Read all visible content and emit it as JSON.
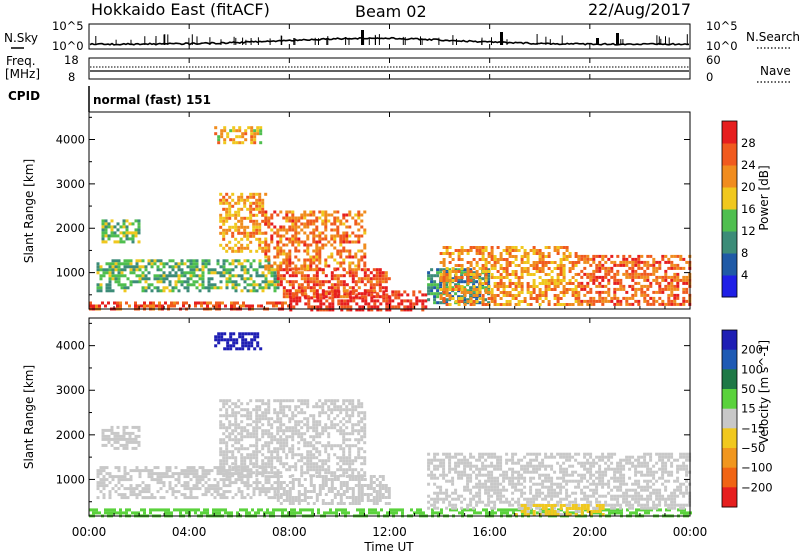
{
  "header": {
    "station": "Hokkaido East (fitACF)",
    "beam": "Beam 02",
    "date": "22/Aug/2017"
  },
  "top_panels": {
    "nsky_label": "N.Sky",
    "nsky_ticks": [
      "10^5",
      "10^0"
    ],
    "nsearch_label": "N.Search",
    "nsearch_ticks": [
      "10^5",
      "10^0"
    ],
    "freq_label": "Freq.",
    "freq_unit": "[MHz]",
    "freq_ticks": [
      "18",
      "8"
    ],
    "nave_label": "Nave",
    "nave_ticks": [
      "60",
      "0"
    ],
    "cpid_label": "CPID",
    "cpid_text": "normal (fast) 151"
  },
  "colors": {
    "power": [
      "#1f1fe6",
      "#1f5aa6",
      "#3c8c78",
      "#4fbf4f",
      "#f0c81e",
      "#f08c1e",
      "#f05a1e",
      "#e61e1e"
    ],
    "velocity": [
      "#1e1eb4",
      "#1e5ab4",
      "#1e7846",
      "#5ad23c",
      "#c8c8c8",
      "#f0c81e",
      "#f0961e",
      "#f06414",
      "#e61e1e"
    ]
  },
  "chart_data": [
    {
      "type": "heatmap",
      "title": "",
      "xlabel": "Time UT",
      "ylabel": "Slant Range [km]",
      "x_range": [
        "00:00",
        "24:00"
      ],
      "x_ticks": [
        "00:00",
        "04:00",
        "08:00",
        "12:00",
        "16:00",
        "20:00",
        "00:00"
      ],
      "ylim": [
        180,
        4620
      ],
      "y_ticks": [
        1000,
        2000,
        3000,
        4000
      ],
      "colorbar": {
        "label": "Power [dB]",
        "ticks": [
          "4",
          "8",
          "12",
          "16",
          "20",
          "24",
          "28"
        ],
        "range": [
          0,
          32
        ]
      },
      "regions": [
        {
          "t0": 0.0,
          "t1": 8.0,
          "r0": 190,
          "r1": 350,
          "value": 26
        },
        {
          "t0": 8.0,
          "t1": 13.5,
          "r0": 190,
          "r1": 600,
          "value": 29
        },
        {
          "t0": 0.3,
          "t1": 7.5,
          "r0": 600,
          "r1": 1300,
          "value": 13
        },
        {
          "t0": 7.5,
          "t1": 12.0,
          "r0": 450,
          "r1": 1100,
          "value": 27
        },
        {
          "t0": 13.5,
          "t1": 16.0,
          "r0": 300,
          "r1": 1100,
          "value": 10
        },
        {
          "t0": 14.0,
          "t1": 19.5,
          "r0": 300,
          "r1": 1600,
          "value": 22
        },
        {
          "t0": 19.5,
          "t1": 24.0,
          "r0": 300,
          "r1": 1400,
          "value": 25
        },
        {
          "t0": 5.2,
          "t1": 7.0,
          "r0": 1500,
          "r1": 2800,
          "value": 21
        },
        {
          "t0": 7.0,
          "t1": 11.0,
          "r0": 1100,
          "r1": 2400,
          "value": 24
        },
        {
          "t0": 0.5,
          "t1": 2.0,
          "r0": 1700,
          "r1": 2200,
          "value": 14
        },
        {
          "t0": 5.0,
          "t1": 6.8,
          "r0": 3900,
          "r1": 4300,
          "value": 20
        }
      ]
    },
    {
      "type": "heatmap",
      "title": "",
      "xlabel": "Time UT",
      "ylabel": "Slant Range [km]",
      "x_range": [
        "00:00",
        "24:00"
      ],
      "x_ticks": [
        "00:00",
        "04:00",
        "08:00",
        "12:00",
        "16:00",
        "20:00",
        "00:00"
      ],
      "ylim": [
        180,
        4620
      ],
      "y_ticks": [
        1000,
        2000,
        3000,
        4000
      ],
      "colorbar": {
        "label": "Velocity [m s^-1]",
        "ticks": [
          "200",
          "100",
          "50",
          "15",
          "−15",
          "−50",
          "−100",
          "−200"
        ],
        "range": [
          -250,
          250
        ]
      },
      "regions": [
        {
          "t0": 0.0,
          "t1": 24.0,
          "r0": 190,
          "r1": 350,
          "value": 60
        },
        {
          "t0": 0.3,
          "t1": 7.5,
          "r0": 600,
          "r1": 1300,
          "value": 0
        },
        {
          "t0": 7.5,
          "t1": 12.0,
          "r0": 450,
          "r1": 1100,
          "value": 0
        },
        {
          "t0": 13.5,
          "t1": 24.0,
          "r0": 350,
          "r1": 1600,
          "value": 0
        },
        {
          "t0": 17.0,
          "t1": 20.5,
          "r0": 190,
          "r1": 450,
          "value": -40
        },
        {
          "t0": 5.2,
          "t1": 11.0,
          "r0": 1100,
          "r1": 2800,
          "value": 0
        },
        {
          "t0": 0.5,
          "t1": 2.0,
          "r0": 1700,
          "r1": 2200,
          "value": 0
        },
        {
          "t0": 5.0,
          "t1": 6.8,
          "r0": 3900,
          "r1": 4300,
          "value": 220
        }
      ]
    }
  ]
}
